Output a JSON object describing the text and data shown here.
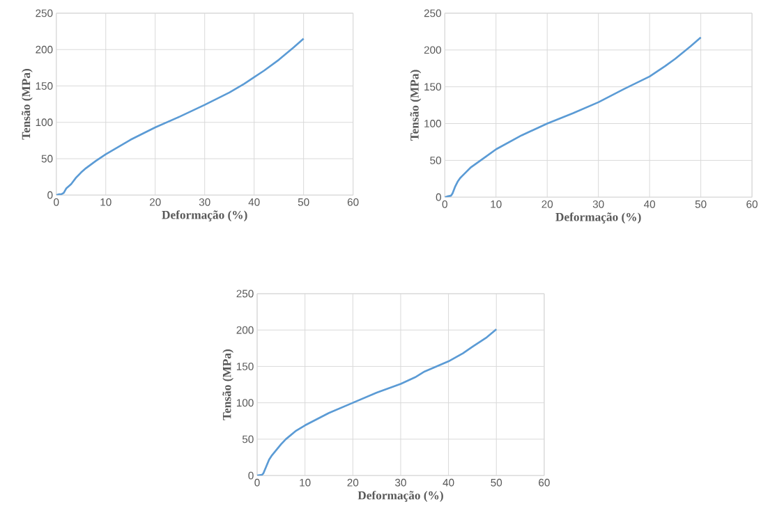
{
  "chart_data": [
    {
      "type": "line",
      "xlabel": "Deformação (%)",
      "ylabel": "Tensão (MPa)",
      "xlim": [
        0,
        60
      ],
      "ylim": [
        0,
        250
      ],
      "xticks": [
        0,
        10,
        20,
        30,
        40,
        50,
        60
      ],
      "yticks": [
        0,
        50,
        100,
        150,
        200,
        250
      ],
      "grid": true,
      "series": [
        {
          "color": "#5b9bd5",
          "x": [
            0,
            0.5,
            1,
            1.5,
            2,
            3,
            4,
            5,
            6,
            8,
            10,
            15,
            20,
            25,
            30,
            35,
            38,
            40,
            42,
            45,
            48,
            50
          ],
          "values": [
            0,
            1,
            1,
            3,
            9,
            15,
            24,
            31,
            37,
            47,
            56,
            76,
            93,
            108,
            124,
            141,
            153,
            162,
            171,
            186,
            203,
            215
          ]
        }
      ]
    },
    {
      "type": "line",
      "xlabel": "Deformação (%)",
      "ylabel": "Tensão (MPa)",
      "xlim": [
        0,
        60
      ],
      "ylim": [
        0,
        250
      ],
      "xticks": [
        0,
        10,
        20,
        30,
        40,
        50,
        60
      ],
      "yticks": [
        0,
        50,
        100,
        150,
        200,
        250
      ],
      "grid": true,
      "series": [
        {
          "color": "#5b9bd5",
          "x": [
            0,
            0.5,
            1.2,
            1.5,
            2,
            2.5,
            3,
            4,
            5,
            6,
            8,
            10,
            15,
            20,
            25,
            30,
            35,
            40,
            43,
            45,
            48,
            50
          ],
          "values": [
            0,
            1,
            2,
            5,
            14,
            21,
            26,
            33,
            40,
            45,
            55,
            65,
            84,
            100,
            114,
            129,
            147,
            164,
            178,
            188,
            205,
            217
          ]
        }
      ]
    },
    {
      "type": "line",
      "xlabel": "Deformação (%)",
      "ylabel": "Tensão (MPa)",
      "xlim": [
        0,
        60
      ],
      "ylim": [
        0,
        250
      ],
      "xticks": [
        0,
        10,
        20,
        30,
        40,
        50,
        60
      ],
      "yticks": [
        0,
        50,
        100,
        150,
        200,
        250
      ],
      "grid": true,
      "series": [
        {
          "color": "#5b9bd5",
          "x": [
            0,
            1,
            1.3,
            2,
            2.5,
            3,
            4,
            5,
            6,
            8,
            10,
            15,
            20,
            25,
            30,
            33,
            35,
            40,
            43,
            45,
            48,
            50
          ],
          "values": [
            0,
            1,
            3,
            14,
            22,
            27,
            35,
            43,
            50,
            61,
            69,
            86,
            100,
            114,
            126,
            135,
            143,
            157,
            168,
            177,
            190,
            201
          ]
        }
      ]
    }
  ]
}
